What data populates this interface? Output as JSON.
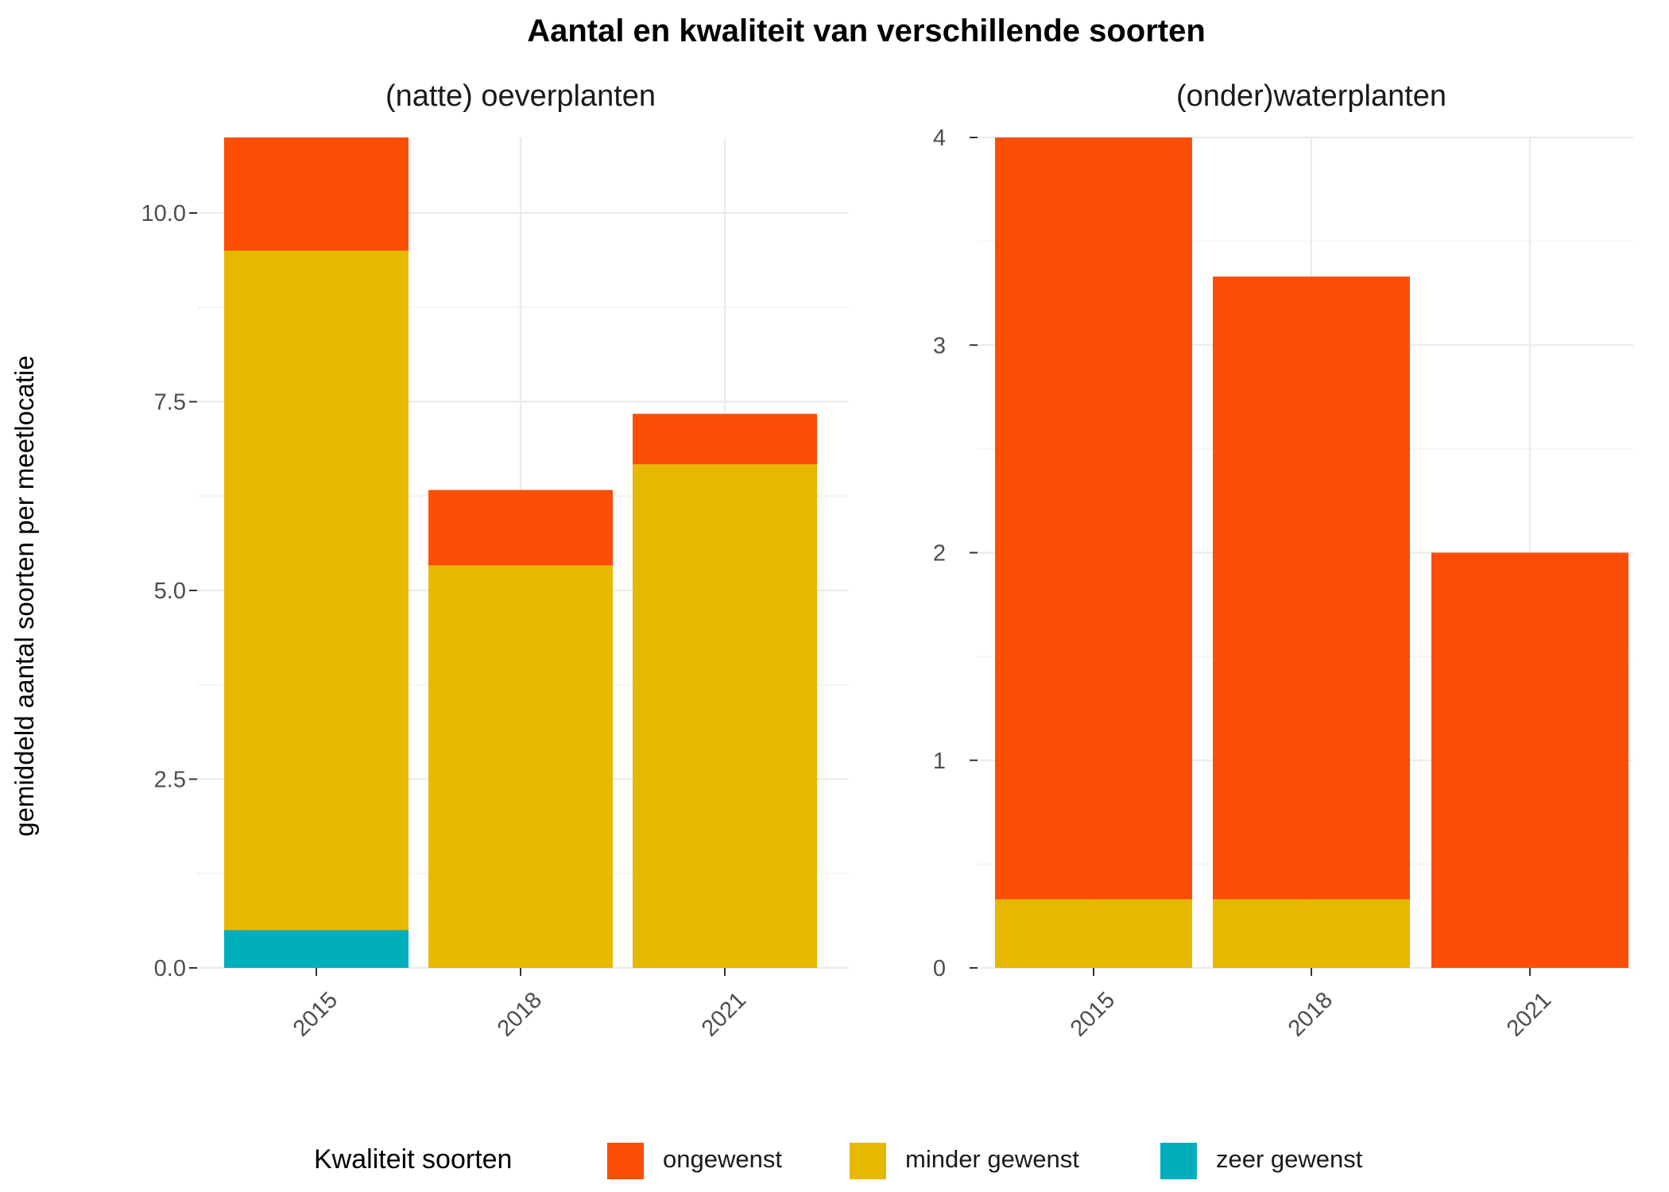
{
  "chart_data": {
    "type": "bar",
    "stacked": true,
    "title": "Aantal en kwaliteit van verschillende soorten",
    "ylabel": "gemiddeld aantal soorten per meetlocatie",
    "legend": {
      "title": "Kwaliteit soorten",
      "position": "bottom",
      "entries": [
        {
          "label": "ongewenst",
          "color": "#FC4E07"
        },
        {
          "label": "minder gewenst",
          "color": "#E7B800"
        },
        {
          "label": "zeer gewenst",
          "color": "#00AFBB"
        }
      ]
    },
    "panels": [
      {
        "subtitle": "(natte) oeverplanten",
        "categories": [
          "2015",
          "2018",
          "2021"
        ],
        "ylim": [
          0,
          11
        ],
        "yticks": [
          0,
          2.5,
          5,
          7.5,
          10
        ],
        "ytick_labels": [
          "0.0",
          "2.5",
          "5.0",
          "7.5",
          "10.0"
        ],
        "grid": true,
        "series": [
          {
            "name": "zeer gewenst",
            "color": "#00AFBB",
            "values": [
              0.5,
              0,
              0
            ]
          },
          {
            "name": "minder gewenst",
            "color": "#E7B800",
            "values": [
              9.0,
              5.33,
              6.67
            ]
          },
          {
            "name": "ongewenst",
            "color": "#FC4E07",
            "values": [
              1.5,
              1.0,
              0.67
            ]
          }
        ]
      },
      {
        "subtitle": "(onder)waterplanten",
        "categories": [
          "2015",
          "2018",
          "2021"
        ],
        "ylim": [
          0,
          4
        ],
        "yticks": [
          0,
          1,
          2,
          3,
          4
        ],
        "ytick_labels": [
          "0",
          "1",
          "2",
          "3",
          "4"
        ],
        "grid": true,
        "series": [
          {
            "name": "zeer gewenst",
            "color": "#00AFBB",
            "values": [
              0,
              0,
              0
            ]
          },
          {
            "name": "minder gewenst",
            "color": "#E7B800",
            "values": [
              0.33,
              0.33,
              0
            ]
          },
          {
            "name": "ongewenst",
            "color": "#FC4E07",
            "values": [
              3.67,
              3.0,
              2.0
            ]
          }
        ]
      }
    ]
  }
}
